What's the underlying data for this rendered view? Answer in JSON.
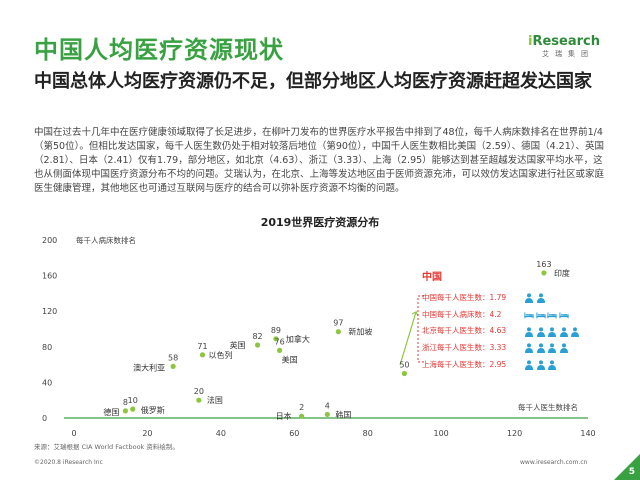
{
  "header": {
    "title": "中国人均医疗资源现状",
    "subtitle": "中国总体人均医疗资源仍不足，但部分地区人均医疗资源赶超发达国家",
    "body": "中国在过去十几年中在医疗健康领域取得了长足进步，在柳叶刀发布的世界医疗水平报告中排到了48位，每千人病床数排名在世界前1/4（第50位）。但相比发达国家，每千人医生数仍处于相对较落后地位（第90位），中国千人医生数相比美国（2.59）、德国（4.21）、英国（2.81）、日本（2.41）仅有1.79，部分地区，如北京（4.63）、浙江（3.33）、上海（2.95）能够达到甚至超越发达国家平均水平，这也从侧面体现中国医疗资源分布不均的问题。艾瑞认为，在北京、上海等发达地区由于医师资源充沛，可以效仿发达国家进行社区或家庭医生健康管理，其他地区也可通过互联网与医疗的结合可以弥补医疗资源不均衡的问题。"
  },
  "logo": {
    "brand_i": "i",
    "brand_rest": "Research",
    "sub": "艾瑞集团"
  },
  "chart_data": {
    "type": "scatter",
    "title": "2019世界医疗资源分布",
    "xlabel": "每千人医生数排名",
    "ylabel": "每千人病床数排名",
    "xlim": [
      0,
      140
    ],
    "ylim": [
      0,
      200
    ],
    "xticks": [
      0,
      20,
      40,
      60,
      80,
      100,
      120,
      140
    ],
    "yticks": [
      0,
      40,
      80,
      120,
      160,
      200
    ],
    "points": [
      {
        "name": "德国",
        "x": 14,
        "y": 8,
        "label": "8"
      },
      {
        "name": "俄罗斯",
        "x": 16,
        "y": 10,
        "label": "10"
      },
      {
        "name": "澳大利亚",
        "x": 27,
        "y": 58,
        "label": "58"
      },
      {
        "name": "法国",
        "x": 34,
        "y": 20,
        "label": "20"
      },
      {
        "name": "以色列",
        "x": 35,
        "y": 71,
        "label": "71"
      },
      {
        "name": "英国",
        "x": 50,
        "y": 82,
        "label": "82"
      },
      {
        "name": "加拿大",
        "x": 55,
        "y": 89,
        "label": "89"
      },
      {
        "name": "美国",
        "x": 56,
        "y": 76,
        "label": "76"
      },
      {
        "name": "日本",
        "x": 62,
        "y": 2,
        "label": "2"
      },
      {
        "name": "韩国",
        "x": 69,
        "y": 4,
        "label": "4"
      },
      {
        "name": "新加坡",
        "x": 72,
        "y": 97,
        "label": "97"
      },
      {
        "name": "",
        "x": 90,
        "y": 50,
        "label": "50"
      },
      {
        "name": "印度",
        "x": 128,
        "y": 163,
        "label": "163"
      }
    ]
  },
  "china": {
    "title": "中国",
    "rows": [
      {
        "label": "中国每千人医生数：1.79",
        "icon": "doctor-icon",
        "count": 2
      },
      {
        "label": "中国每千人病床数：4.2",
        "icon": "bed-icon",
        "count": 4
      },
      {
        "label": "北京每千人医生数：4.63",
        "icon": "doctor-icon",
        "count": 5
      },
      {
        "label": "浙江每千人医生数：3.33",
        "icon": "doctor-icon",
        "count": 4
      },
      {
        "label": "上海每千人医生数：2.95",
        "icon": "doctor-icon",
        "count": 3
      }
    ]
  },
  "colors": {
    "brand_green": "#3aa142",
    "point": "#8cc63f",
    "china_red": "#e53935",
    "icon_blue": "#2a9fd6"
  },
  "footer": {
    "source": "来源：艾瑞根据 CIA World Factbook 资料绘制。",
    "copyright": "©2020.8 iResearch Inc",
    "url": "www.iresearch.com.cn",
    "page": "5"
  }
}
